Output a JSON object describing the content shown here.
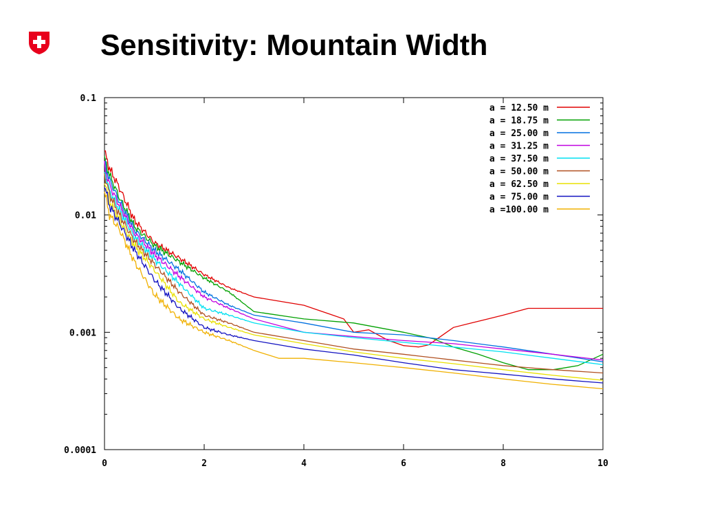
{
  "header": {
    "title": "Sensitivity: Mountain Width",
    "logo_icon": "swiss-cross-shield-icon",
    "logo_color": "#e8001c"
  },
  "chart_data": {
    "type": "line",
    "title": "",
    "xlabel": "",
    "ylabel": "",
    "xlim": [
      0,
      10
    ],
    "ylim": [
      0.0001,
      0.1
    ],
    "yscale": "log",
    "grid": false,
    "legend_position": "top-right",
    "x_ticks": [
      {
        "value": 0,
        "label": "0"
      },
      {
        "value": 2,
        "label": "2"
      },
      {
        "value": 4,
        "label": "4"
      },
      {
        "value": 6,
        "label": "6"
      },
      {
        "value": 8,
        "label": "8"
      },
      {
        "value": 10,
        "label": "10"
      }
    ],
    "y_ticks": [
      {
        "value": 0.0001,
        "label": "0.0001"
      },
      {
        "value": 0.001,
        "label": "0.001"
      },
      {
        "value": 0.01,
        "label": "0.01"
      },
      {
        "value": 0.1,
        "label": "0.1"
      }
    ],
    "series": [
      {
        "name": "a = 12.50 m",
        "color": "#e00000",
        "x": [
          0,
          0.1,
          0.3,
          0.6,
          1.0,
          1.5,
          2.0,
          2.5,
          3.0,
          4.0,
          4.8,
          5.0,
          5.3,
          5.7,
          6.0,
          6.3,
          6.5,
          7.0,
          8.0,
          8.5,
          9.0,
          10.0
        ],
        "y": [
          0.035,
          0.025,
          0.017,
          0.009,
          0.0058,
          0.0043,
          0.0031,
          0.0024,
          0.002,
          0.0017,
          0.0013,
          0.001,
          0.00105,
          0.00085,
          0.00077,
          0.00075,
          0.00078,
          0.0011,
          0.0014,
          0.0016,
          0.0016,
          0.0016
        ]
      },
      {
        "name": "a = 18.75 m",
        "color": "#00a000",
        "x": [
          0,
          0.1,
          0.3,
          0.6,
          1.0,
          1.5,
          2.0,
          2.5,
          3.0,
          4.0,
          5.0,
          6.0,
          6.6,
          7.0,
          7.5,
          8.0,
          8.5,
          9.0,
          9.5,
          10.0
        ],
        "y": [
          0.03,
          0.022,
          0.014,
          0.008,
          0.0055,
          0.004,
          0.0029,
          0.0022,
          0.0015,
          0.0013,
          0.0012,
          0.001,
          0.00088,
          0.00075,
          0.00065,
          0.00055,
          0.00048,
          0.00048,
          0.00052,
          0.00065
        ]
      },
      {
        "name": "a = 25.00 m",
        "color": "#0070e0",
        "x": [
          0,
          0.1,
          0.3,
          0.6,
          1.0,
          1.5,
          2.0,
          2.5,
          3.0,
          4.0,
          5.0,
          6.0,
          7.0,
          8.0,
          9.0,
          10.0
        ],
        "y": [
          0.028,
          0.02,
          0.013,
          0.0075,
          0.005,
          0.0034,
          0.0022,
          0.0017,
          0.0014,
          0.0012,
          0.001,
          0.00095,
          0.00085,
          0.00075,
          0.00065,
          0.00056
        ]
      },
      {
        "name": "a = 31.25 m",
        "color": "#c000e0",
        "x": [
          0,
          0.1,
          0.3,
          0.6,
          1.0,
          1.5,
          2.0,
          2.5,
          3.0,
          4.0,
          5.0,
          6.0,
          7.0,
          8.0,
          9.0,
          10.0
        ],
        "y": [
          0.026,
          0.018,
          0.012,
          0.007,
          0.0046,
          0.003,
          0.002,
          0.0016,
          0.0013,
          0.001,
          0.00092,
          0.00085,
          0.0008,
          0.00072,
          0.00065,
          0.00058
        ]
      },
      {
        "name": "a = 37.50 m",
        "color": "#00e0f0",
        "x": [
          0,
          0.1,
          0.3,
          0.6,
          1.0,
          1.5,
          2.0,
          2.5,
          3.0,
          4.0,
          5.0,
          6.0,
          7.0,
          8.0,
          9.0,
          10.0
        ],
        "y": [
          0.024,
          0.016,
          0.011,
          0.0065,
          0.0042,
          0.0026,
          0.0016,
          0.0014,
          0.0012,
          0.001,
          0.0009,
          0.00082,
          0.00075,
          0.00068,
          0.0006,
          0.00053
        ]
      },
      {
        "name": "a = 50.00 m",
        "color": "#b05020",
        "x": [
          0,
          0.1,
          0.3,
          0.6,
          1.0,
          1.5,
          2.0,
          2.5,
          3.0,
          4.0,
          5.0,
          6.0,
          7.0,
          8.0,
          9.0,
          10.0
        ],
        "y": [
          0.022,
          0.015,
          0.01,
          0.006,
          0.0038,
          0.0022,
          0.0014,
          0.0012,
          0.001,
          0.00085,
          0.00072,
          0.00065,
          0.00058,
          0.00052,
          0.00048,
          0.00045
        ]
      },
      {
        "name": "a = 62.50 m",
        "color": "#e8e000",
        "x": [
          0,
          0.1,
          0.3,
          0.6,
          1.0,
          1.5,
          2.0,
          2.5,
          3.0,
          4.0,
          5.0,
          6.0,
          7.0,
          8.0,
          9.0,
          10.0
        ],
        "y": [
          0.02,
          0.013,
          0.009,
          0.0055,
          0.0034,
          0.0018,
          0.0013,
          0.0011,
          0.00095,
          0.0008,
          0.00068,
          0.0006,
          0.00054,
          0.00048,
          0.00043,
          0.00039
        ]
      },
      {
        "name": "a = 75.00 m",
        "color": "#1010c0",
        "x": [
          0,
          0.1,
          0.3,
          0.6,
          1.0,
          1.5,
          2.0,
          2.5,
          3.0,
          4.0,
          5.0,
          6.0,
          7.0,
          8.0,
          9.0,
          10.0
        ],
        "y": [
          0.018,
          0.012,
          0.0085,
          0.005,
          0.0028,
          0.0016,
          0.0011,
          0.00095,
          0.00085,
          0.00072,
          0.00064,
          0.00055,
          0.00048,
          0.00044,
          0.0004,
          0.00037
        ]
      },
      {
        "name": "a =100.00 m",
        "color": "#f0b000",
        "x": [
          0,
          0.1,
          0.3,
          0.6,
          1.0,
          1.5,
          2.0,
          2.5,
          3.0,
          3.5,
          4.0,
          5.0,
          6.0,
          7.0,
          8.0,
          9.0,
          10.0
        ],
        "y": [
          0.016,
          0.01,
          0.0075,
          0.004,
          0.0021,
          0.0013,
          0.001,
          0.00085,
          0.0007,
          0.0006,
          0.0006,
          0.00055,
          0.0005,
          0.00045,
          0.0004,
          0.00036,
          0.00033
        ]
      }
    ]
  }
}
